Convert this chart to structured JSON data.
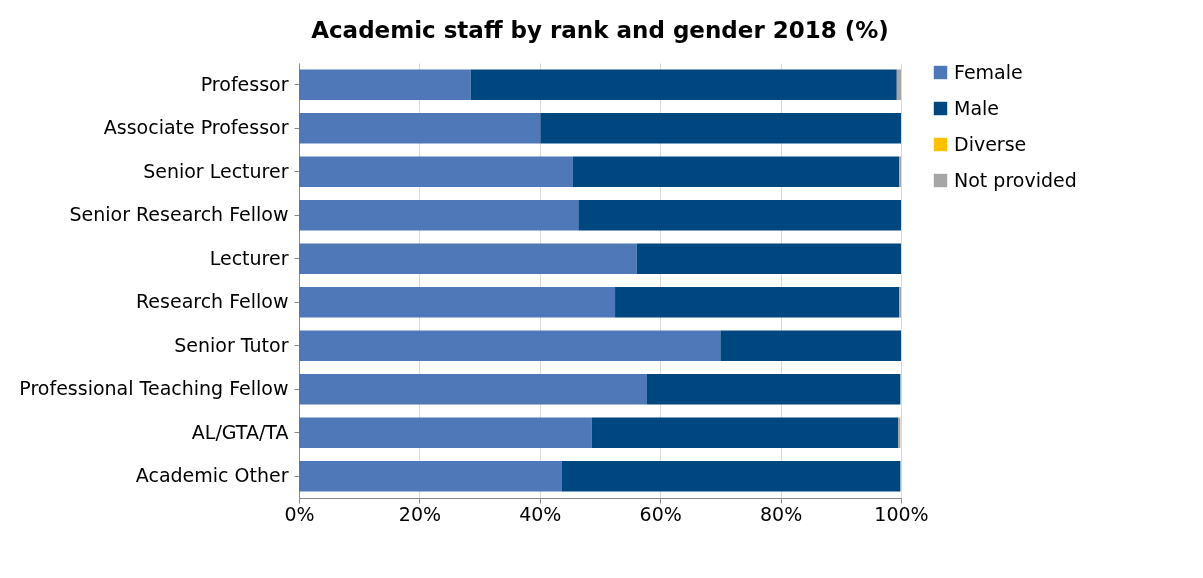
{
  "chart_data": {
    "type": "bar",
    "orientation": "horizontal",
    "stacked": true,
    "title": "Academic staff by rank and gender 2018 (%)",
    "categories": [
      "Professor",
      "Associate Professor",
      "Senior Lecturer",
      "Senior Research Fellow",
      "Lecturer",
      "Research Fellow",
      "Senior Tutor",
      "Professional Teaching Fellow",
      "AL/GTA/TA",
      "Academic Other"
    ],
    "series": [
      {
        "name": "Female",
        "color": "#4f78b8",
        "values": [
          28.5,
          40.1,
          45.5,
          46.4,
          56.1,
          52.5,
          70.0,
          57.8,
          48.6,
          43.6
        ]
      },
      {
        "name": "Male",
        "color": "#00467f",
        "values": [
          70.8,
          59.9,
          54.2,
          53.6,
          43.9,
          47.2,
          30.0,
          42.1,
          50.9,
          56.3
        ]
      },
      {
        "name": "Diverse",
        "color": "#ffc000",
        "values": [
          0,
          0,
          0,
          0,
          0,
          0,
          0,
          0,
          null,
          0
        ]
      },
      {
        "name": "Not provided",
        "color": "#a6a6a6",
        "values": [
          0.7,
          0,
          0.3,
          0,
          0,
          0.3,
          0,
          null,
          0.4,
          null
        ]
      }
    ],
    "xlim": [
      0,
      100
    ],
    "xticks": [
      {
        "value": 0,
        "label": "0%"
      },
      {
        "value": 20,
        "label": "20%"
      },
      {
        "value": 40,
        "label": "40%"
      },
      {
        "value": 60,
        "label": "60%"
      },
      {
        "value": 80,
        "label": "80%"
      },
      {
        "value": 100,
        "label": "100%"
      }
    ],
    "grid": "x",
    "legend": "right"
  }
}
